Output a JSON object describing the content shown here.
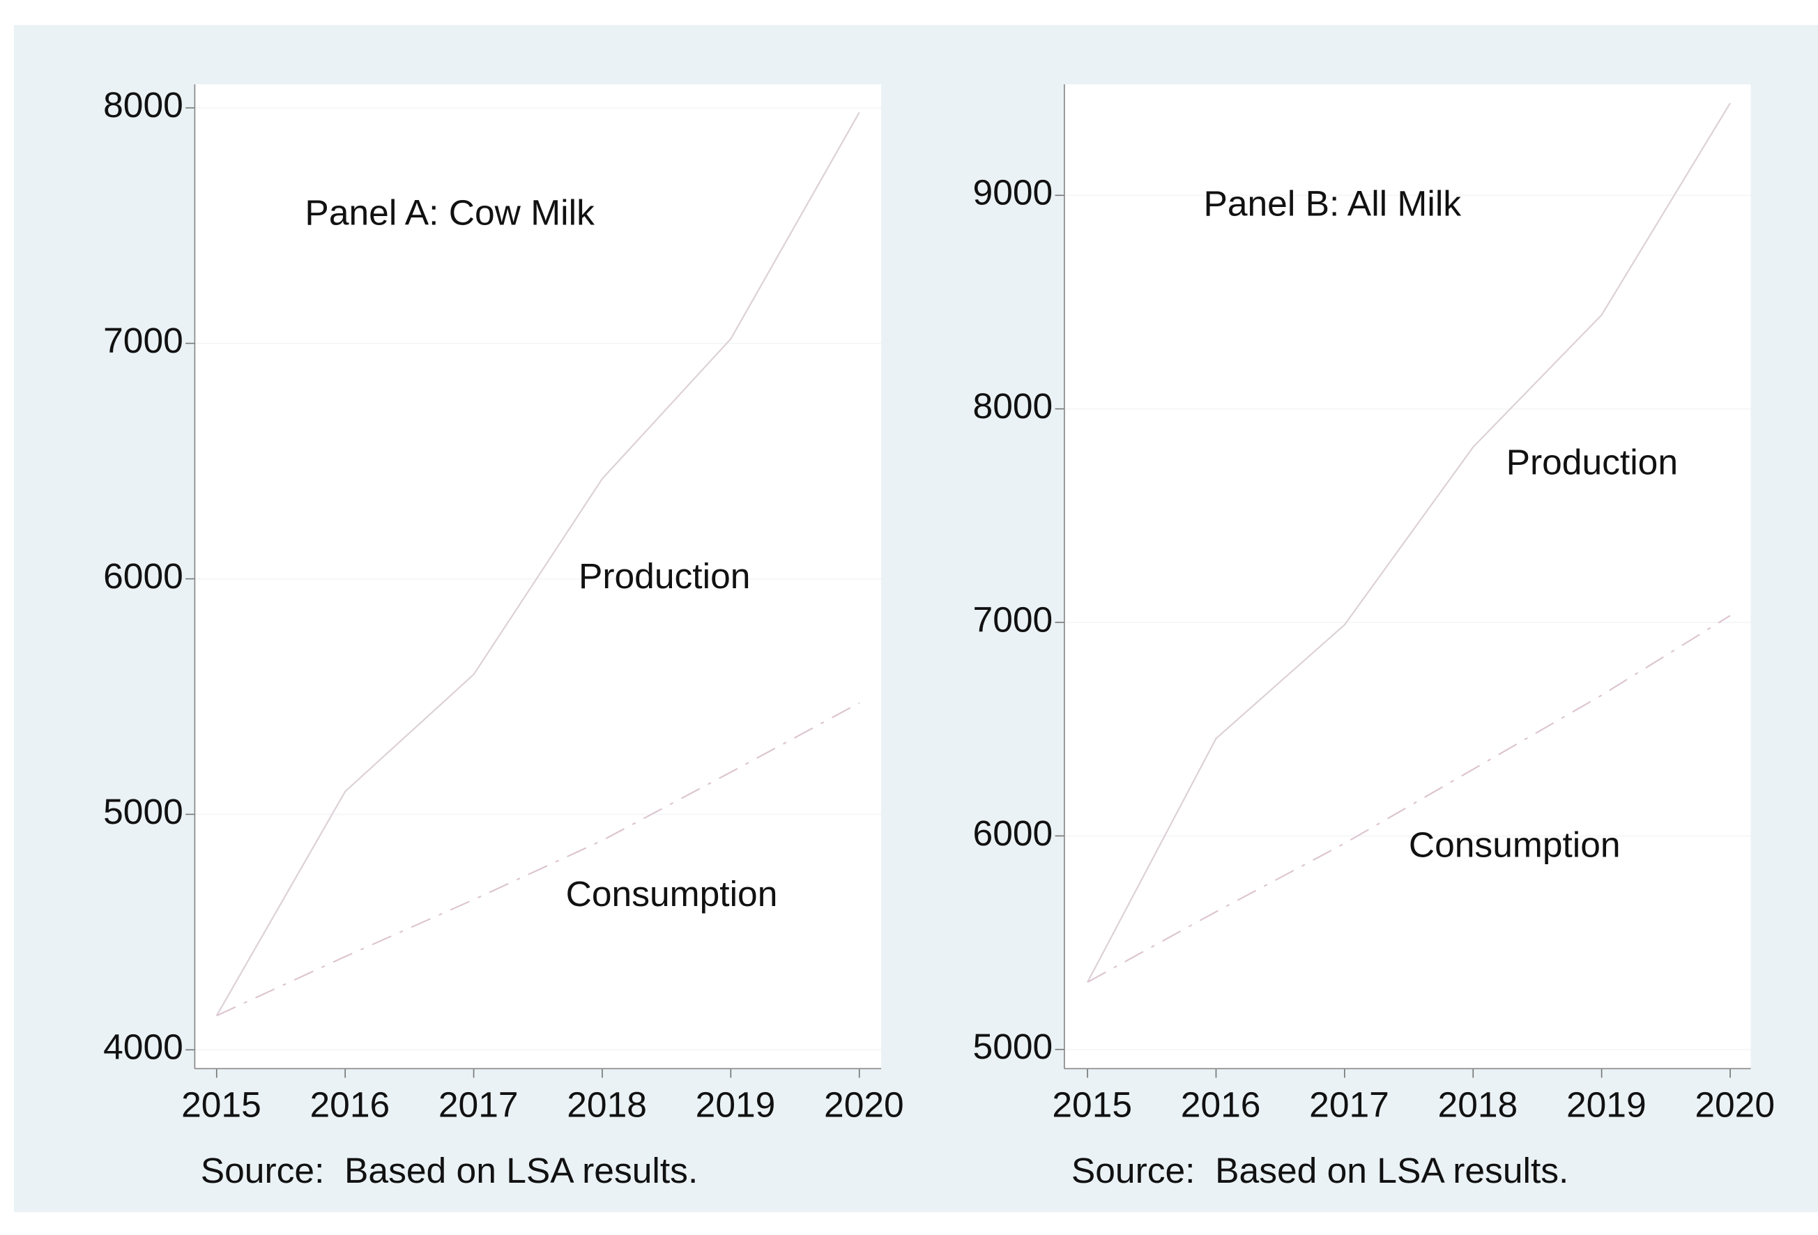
{
  "chart_data": [
    {
      "type": "line",
      "title": "Panel A: Cow Milk",
      "note": "Source:  Based on LSA results.",
      "x": [
        2015,
        2016,
        2017,
        2018,
        2019,
        2020
      ],
      "xlim": [
        2014.83,
        2020.17
      ],
      "xticks": [
        2015,
        2016,
        2017,
        2018,
        2019,
        2020
      ],
      "ylim": [
        3920,
        8100
      ],
      "yticks": [
        4000,
        5000,
        6000,
        7000,
        8000
      ],
      "grid": true,
      "series": [
        {
          "name": "Production",
          "color": "#dcd0d6",
          "line_style": "solid",
          "values": [
            4145,
            5097,
            5594,
            6425,
            7019,
            7981
          ]
        },
        {
          "name": "Consumption",
          "color": "#dcc4cf",
          "line_style": "dashdot",
          "values": [
            4145,
            4396,
            4638,
            4889,
            5179,
            5473
          ]
        }
      ]
    },
    {
      "type": "line",
      "title": "Panel B: All Milk",
      "note": "Source:  Based on LSA results.",
      "x": [
        2015,
        2016,
        2017,
        2018,
        2019,
        2020
      ],
      "xlim": [
        2014.82,
        2020.16
      ],
      "xticks": [
        2015,
        2016,
        2017,
        2018,
        2019,
        2020
      ],
      "ylim": [
        4910,
        9520
      ],
      "yticks": [
        5000,
        6000,
        7000,
        8000,
        9000
      ],
      "grid": true,
      "series": [
        {
          "name": "Production",
          "color": "#dcd0d6",
          "line_style": "solid",
          "values": [
            5315,
            6456,
            6989,
            7821,
            8440,
            9432
          ]
        },
        {
          "name": "Consumption",
          "color": "#dcc4cf",
          "line_style": "dashdot",
          "values": [
            5315,
            5645,
            5965,
            6312,
            6659,
            7032
          ]
        }
      ]
    }
  ]
}
